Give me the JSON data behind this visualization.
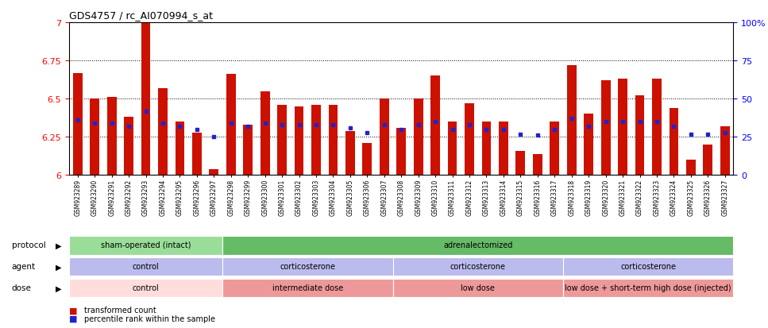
{
  "title": "GDS4757 / rc_AI070994_s_at",
  "samples": [
    "GSM923289",
    "GSM923290",
    "GSM923291",
    "GSM923292",
    "GSM923293",
    "GSM923294",
    "GSM923295",
    "GSM923296",
    "GSM923297",
    "GSM923298",
    "GSM923299",
    "GSM923300",
    "GSM923301",
    "GSM923302",
    "GSM923303",
    "GSM923304",
    "GSM923305",
    "GSM923306",
    "GSM923307",
    "GSM923308",
    "GSM923309",
    "GSM923310",
    "GSM923311",
    "GSM923312",
    "GSM923313",
    "GSM923314",
    "GSM923315",
    "GSM923316",
    "GSM923317",
    "GSM923318",
    "GSM923319",
    "GSM923320",
    "GSM923321",
    "GSM923322",
    "GSM923323",
    "GSM923324",
    "GSM923325",
    "GSM923326",
    "GSM923327"
  ],
  "red_values": [
    6.67,
    6.5,
    6.51,
    6.38,
    7.0,
    6.57,
    6.35,
    6.28,
    6.04,
    6.66,
    6.33,
    6.55,
    6.46,
    6.45,
    6.46,
    6.46,
    6.29,
    6.21,
    6.5,
    6.31,
    6.5,
    6.65,
    6.35,
    6.47,
    6.35,
    6.35,
    6.16,
    6.14,
    6.35,
    6.72,
    6.4,
    6.62,
    6.63,
    6.52,
    6.63,
    6.44,
    6.1,
    6.2,
    6.32
  ],
  "blue_values": [
    36,
    34,
    34,
    32,
    42,
    34,
    32,
    30,
    25,
    34,
    32,
    34,
    33,
    33,
    33,
    33,
    31,
    28,
    33,
    30,
    33,
    35,
    30,
    33,
    30,
    30,
    27,
    26,
    30,
    37,
    32,
    35,
    35,
    35,
    35,
    32,
    27,
    27,
    28
  ],
  "ylim_left": [
    6.0,
    7.0
  ],
  "ylim_right": [
    0,
    100
  ],
  "yticks_left": [
    6.0,
    6.25,
    6.5,
    6.75,
    7.0
  ],
  "yticks_right": [
    0,
    25,
    50,
    75,
    100
  ],
  "bar_color": "#CC1100",
  "marker_color": "#2222CC",
  "bar_base": 6.0,
  "protocol_groups": [
    {
      "label": "sham-operated (intact)",
      "start": 0,
      "end": 9,
      "color": "#99DD99"
    },
    {
      "label": "adrenalectomized",
      "start": 9,
      "end": 39,
      "color": "#66BB66"
    }
  ],
  "agent_groups": [
    {
      "label": "control",
      "start": 0,
      "end": 9,
      "color": "#BBBBEE"
    },
    {
      "label": "corticosterone",
      "start": 9,
      "end": 19,
      "color": "#BBBBEE"
    },
    {
      "label": "corticosterone",
      "start": 19,
      "end": 29,
      "color": "#BBBBEE"
    },
    {
      "label": "corticosterone",
      "start": 29,
      "end": 39,
      "color": "#BBBBEE"
    }
  ],
  "dose_groups": [
    {
      "label": "control",
      "start": 0,
      "end": 9,
      "color": "#FFDDDD"
    },
    {
      "label": "intermediate dose",
      "start": 9,
      "end": 19,
      "color": "#EE9999"
    },
    {
      "label": "low dose",
      "start": 19,
      "end": 29,
      "color": "#EE9999"
    },
    {
      "label": "low dose + short-term high dose (injected)",
      "start": 29,
      "end": 39,
      "color": "#EE9999"
    }
  ],
  "legend_items": [
    {
      "label": "transformed count",
      "color": "#CC1100"
    },
    {
      "label": "percentile rank within the sample",
      "color": "#2222CC"
    }
  ],
  "row_labels": [
    "protocol",
    "agent",
    "dose"
  ]
}
